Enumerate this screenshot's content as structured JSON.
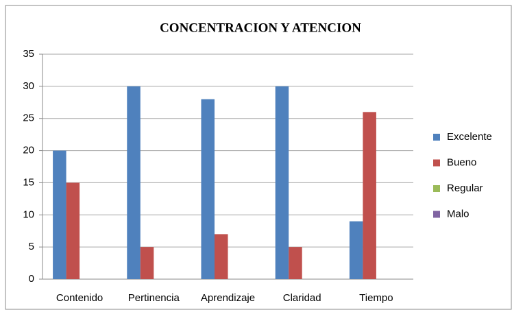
{
  "chart_data": {
    "type": "bar",
    "title": "CONCENTRACION Y ATENCION",
    "categories": [
      "Contenido",
      "Pertinencia",
      "Aprendizaje",
      "Claridad",
      "Tiempo"
    ],
    "series": [
      {
        "name": "Excelente",
        "color": "#4f81bd",
        "values": [
          20,
          30,
          28,
          30,
          9
        ]
      },
      {
        "name": "Bueno",
        "color": "#c0504d",
        "values": [
          15,
          5,
          7,
          5,
          26
        ]
      },
      {
        "name": "Regular",
        "color": "#9bbb59",
        "values": [
          0,
          0,
          0,
          0,
          0
        ]
      },
      {
        "name": "Malo",
        "color": "#8064a2",
        "values": [
          0,
          0,
          0,
          0,
          0
        ]
      }
    ],
    "ylim": [
      0,
      35
    ],
    "yticks": [
      0,
      5,
      10,
      15,
      20,
      25,
      30,
      35
    ],
    "grid": true,
    "legend": "right"
  }
}
